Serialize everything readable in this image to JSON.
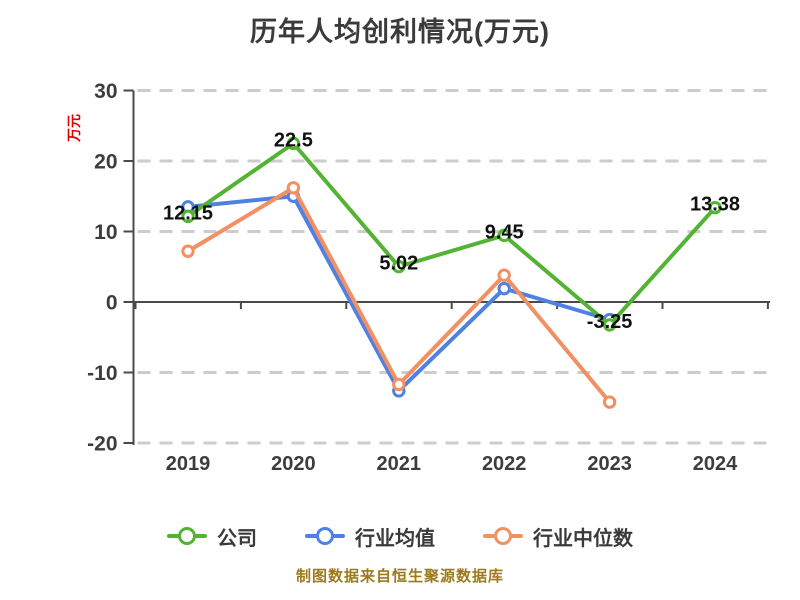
{
  "chart_data": {
    "type": "line",
    "title": "历年人均创利情况(万元)",
    "ylabel": "万元",
    "xlabel": "",
    "categories": [
      "2019",
      "2020",
      "2021",
      "2022",
      "2023",
      "2024"
    ],
    "series": [
      {
        "name": "公司",
        "color": "#53b332",
        "values": [
          12.15,
          22.5,
          5.02,
          9.45,
          -3.25,
          13.38
        ],
        "labels": [
          "12.15",
          "22.5",
          "5.02",
          "9.45",
          "-3.25",
          "13.38"
        ]
      },
      {
        "name": "行业均值",
        "color": "#4f80e2",
        "values": [
          13.5,
          15.0,
          -12.6,
          1.9,
          -2.5,
          null
        ]
      },
      {
        "name": "行业中位数",
        "color": "#f29063",
        "values": [
          7.2,
          16.2,
          -11.7,
          3.8,
          -14.2,
          null
        ]
      }
    ],
    "draw_order": [
      1,
      2,
      0
    ],
    "ylim": [
      -20,
      30
    ],
    "ytick_values": [
      30,
      20,
      10,
      0,
      -10,
      -20
    ],
    "ytick_labels": [
      "30",
      "20",
      "10",
      "0",
      "-10",
      "-20"
    ],
    "grid_dashed_values": [
      30,
      20,
      10,
      -10,
      -20
    ],
    "grid_on": true,
    "legend_position": "bottom",
    "colors": {
      "axis": "#4a4a4a",
      "gridline": "#cccccc",
      "tick_text": "#3d3d3d",
      "data_label": "#111111",
      "title_text": "#3b3b3b",
      "unit_label": "#e60000",
      "marker_fill": "#ffffff"
    }
  },
  "footer": {
    "note": "制图数据来自恒生聚源数据库",
    "color": "#9c7a1e"
  }
}
